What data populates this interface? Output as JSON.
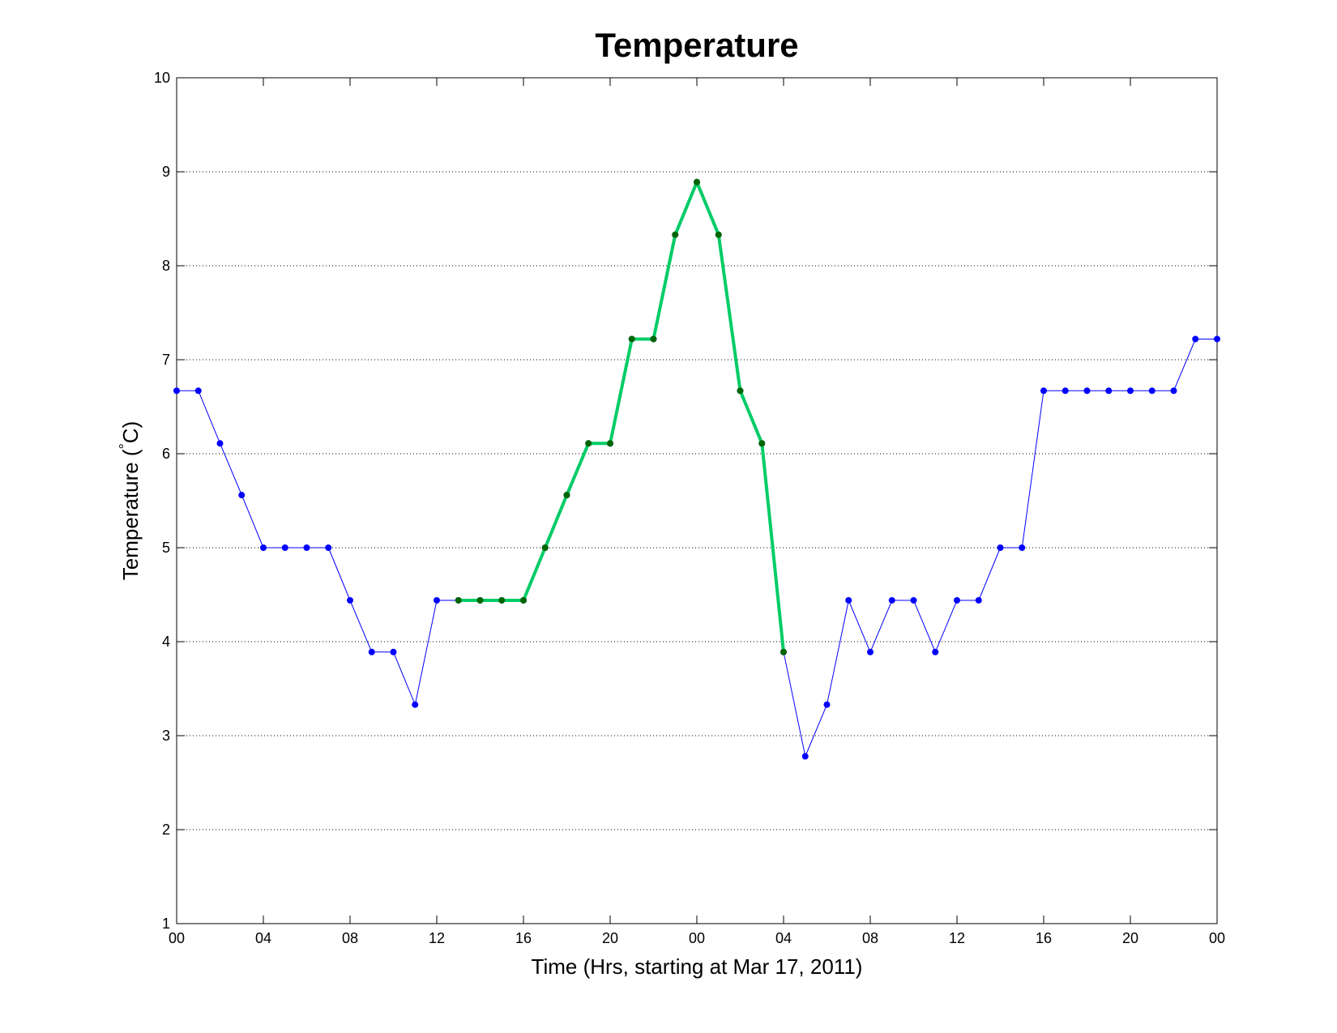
{
  "chart_data": {
    "type": "line",
    "title": "Temperature",
    "xlabel": "Time (Hrs, starting at Mar 17, 2011)",
    "ylabel": "Temperature (°C)",
    "ylabel_parts": {
      "main": "Temperature (",
      "degree": "°",
      "unit": "C)"
    },
    "xlim": [
      0,
      48
    ],
    "ylim": [
      1,
      10
    ],
    "grid": "y-dotted",
    "x_ticks": [
      0,
      4,
      8,
      12,
      16,
      20,
      24,
      28,
      32,
      36,
      40,
      44,
      48
    ],
    "x_tick_labels": [
      "00",
      "04",
      "08",
      "12",
      "16",
      "20",
      "00",
      "04",
      "08",
      "12",
      "16",
      "20",
      "00"
    ],
    "y_ticks": [
      1,
      2,
      3,
      4,
      5,
      6,
      7,
      8,
      9,
      10
    ],
    "y_tick_labels": [
      "1",
      "2",
      "3",
      "4",
      "5",
      "6",
      "7",
      "8",
      "9",
      "10"
    ],
    "series": [
      {
        "color": "#0000ff",
        "marker_color": "#0000ff",
        "line_width": 1,
        "x": [
          0,
          1,
          2,
          3,
          4,
          5,
          6,
          7,
          8,
          9,
          10,
          11,
          12,
          13,
          14,
          15,
          16,
          17,
          18,
          19,
          20,
          21,
          22,
          23,
          24,
          25,
          26,
          27,
          28,
          29,
          30,
          31,
          32,
          33,
          34,
          35,
          36,
          37,
          38,
          39,
          40,
          41,
          42,
          43,
          44,
          45,
          46,
          47,
          48
        ],
        "y": [
          6.67,
          6.67,
          6.11,
          5.56,
          5.0,
          5.0,
          5.0,
          5.0,
          4.44,
          3.89,
          3.89,
          3.33,
          4.44,
          4.44,
          4.44,
          4.44,
          4.44,
          5.0,
          5.56,
          6.11,
          6.11,
          7.22,
          7.22,
          8.33,
          8.89,
          8.33,
          6.67,
          6.11,
          3.89,
          2.78,
          3.33,
          4.44,
          3.89,
          4.44,
          4.44,
          3.89,
          4.44,
          4.44,
          5.0,
          5.0,
          6.67,
          6.67,
          6.67,
          6.67,
          6.67,
          6.67,
          6.67,
          7.22,
          7.22
        ]
      },
      {
        "color": "#00cc66",
        "marker_color": "#006600",
        "line_width": 4,
        "x": [
          13,
          14,
          15,
          16,
          17,
          18,
          19,
          20,
          21,
          22,
          23,
          24,
          25,
          26,
          27,
          28
        ],
        "y": [
          4.44,
          4.44,
          4.44,
          4.44,
          5.0,
          5.56,
          6.11,
          6.11,
          7.22,
          7.22,
          8.33,
          8.89,
          8.33,
          6.67,
          6.11,
          3.89
        ]
      }
    ]
  }
}
